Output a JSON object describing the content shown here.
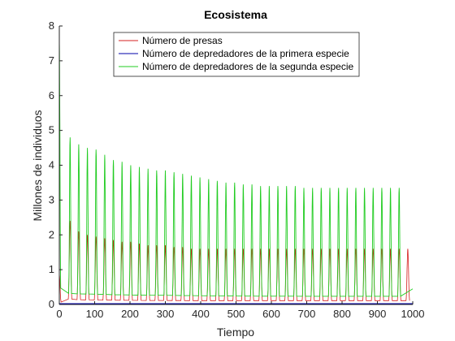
{
  "chart_data": {
    "type": "line",
    "title": "Ecosistema",
    "xlabel": "Tiempo",
    "ylabel": "Millones de individuos",
    "xlim": [
      0,
      1000
    ],
    "ylim": [
      0,
      8
    ],
    "xticks": [
      "0",
      "100",
      "200",
      "300",
      "400",
      "500",
      "600",
      "700",
      "800",
      "900",
      "1000"
    ],
    "yticks": [
      "0",
      "1",
      "2",
      "3",
      "4",
      "5",
      "6",
      "7",
      "8"
    ],
    "grid": false,
    "legend_position": "top-center",
    "series": [
      {
        "name": "Número de presas",
        "color": "#d62020",
        "style": "periodic-spikes",
        "first_peak": 0.85,
        "peaks": [
          2.4,
          2.1,
          2.0,
          1.95,
          1.9,
          1.85,
          1.8,
          1.8,
          1.75,
          1.7,
          1.7,
          1.7,
          1.65,
          1.65,
          1.6,
          1.6,
          1.6,
          1.6,
          1.6
        ],
        "baseline": 0.02
      },
      {
        "name": "Número de depredadores de la primera especie",
        "color": "#0000aa",
        "style": "flat",
        "value": 0.02
      },
      {
        "name": "Número de depredadores de la segunda especie",
        "color": "#22cc22",
        "style": "periodic-spikes",
        "first_peak": 7.6,
        "peaks": [
          4.8,
          4.6,
          4.5,
          4.45,
          4.3,
          4.15,
          4.1,
          4.0,
          3.95,
          3.9,
          3.85,
          3.85,
          3.8,
          3.75,
          3.7,
          3.65,
          3.6,
          3.55,
          3.5,
          3.5,
          3.45,
          3.45,
          3.4,
          3.4,
          3.4,
          3.4,
          3.4,
          3.35,
          3.35,
          3.35,
          3.35,
          3.35,
          3.35,
          3.35,
          3.35,
          3.35,
          3.35,
          3.35,
          3.35
        ],
        "period": 24.5,
        "baseline": 0.05,
        "end_value": 0.45
      }
    ]
  }
}
